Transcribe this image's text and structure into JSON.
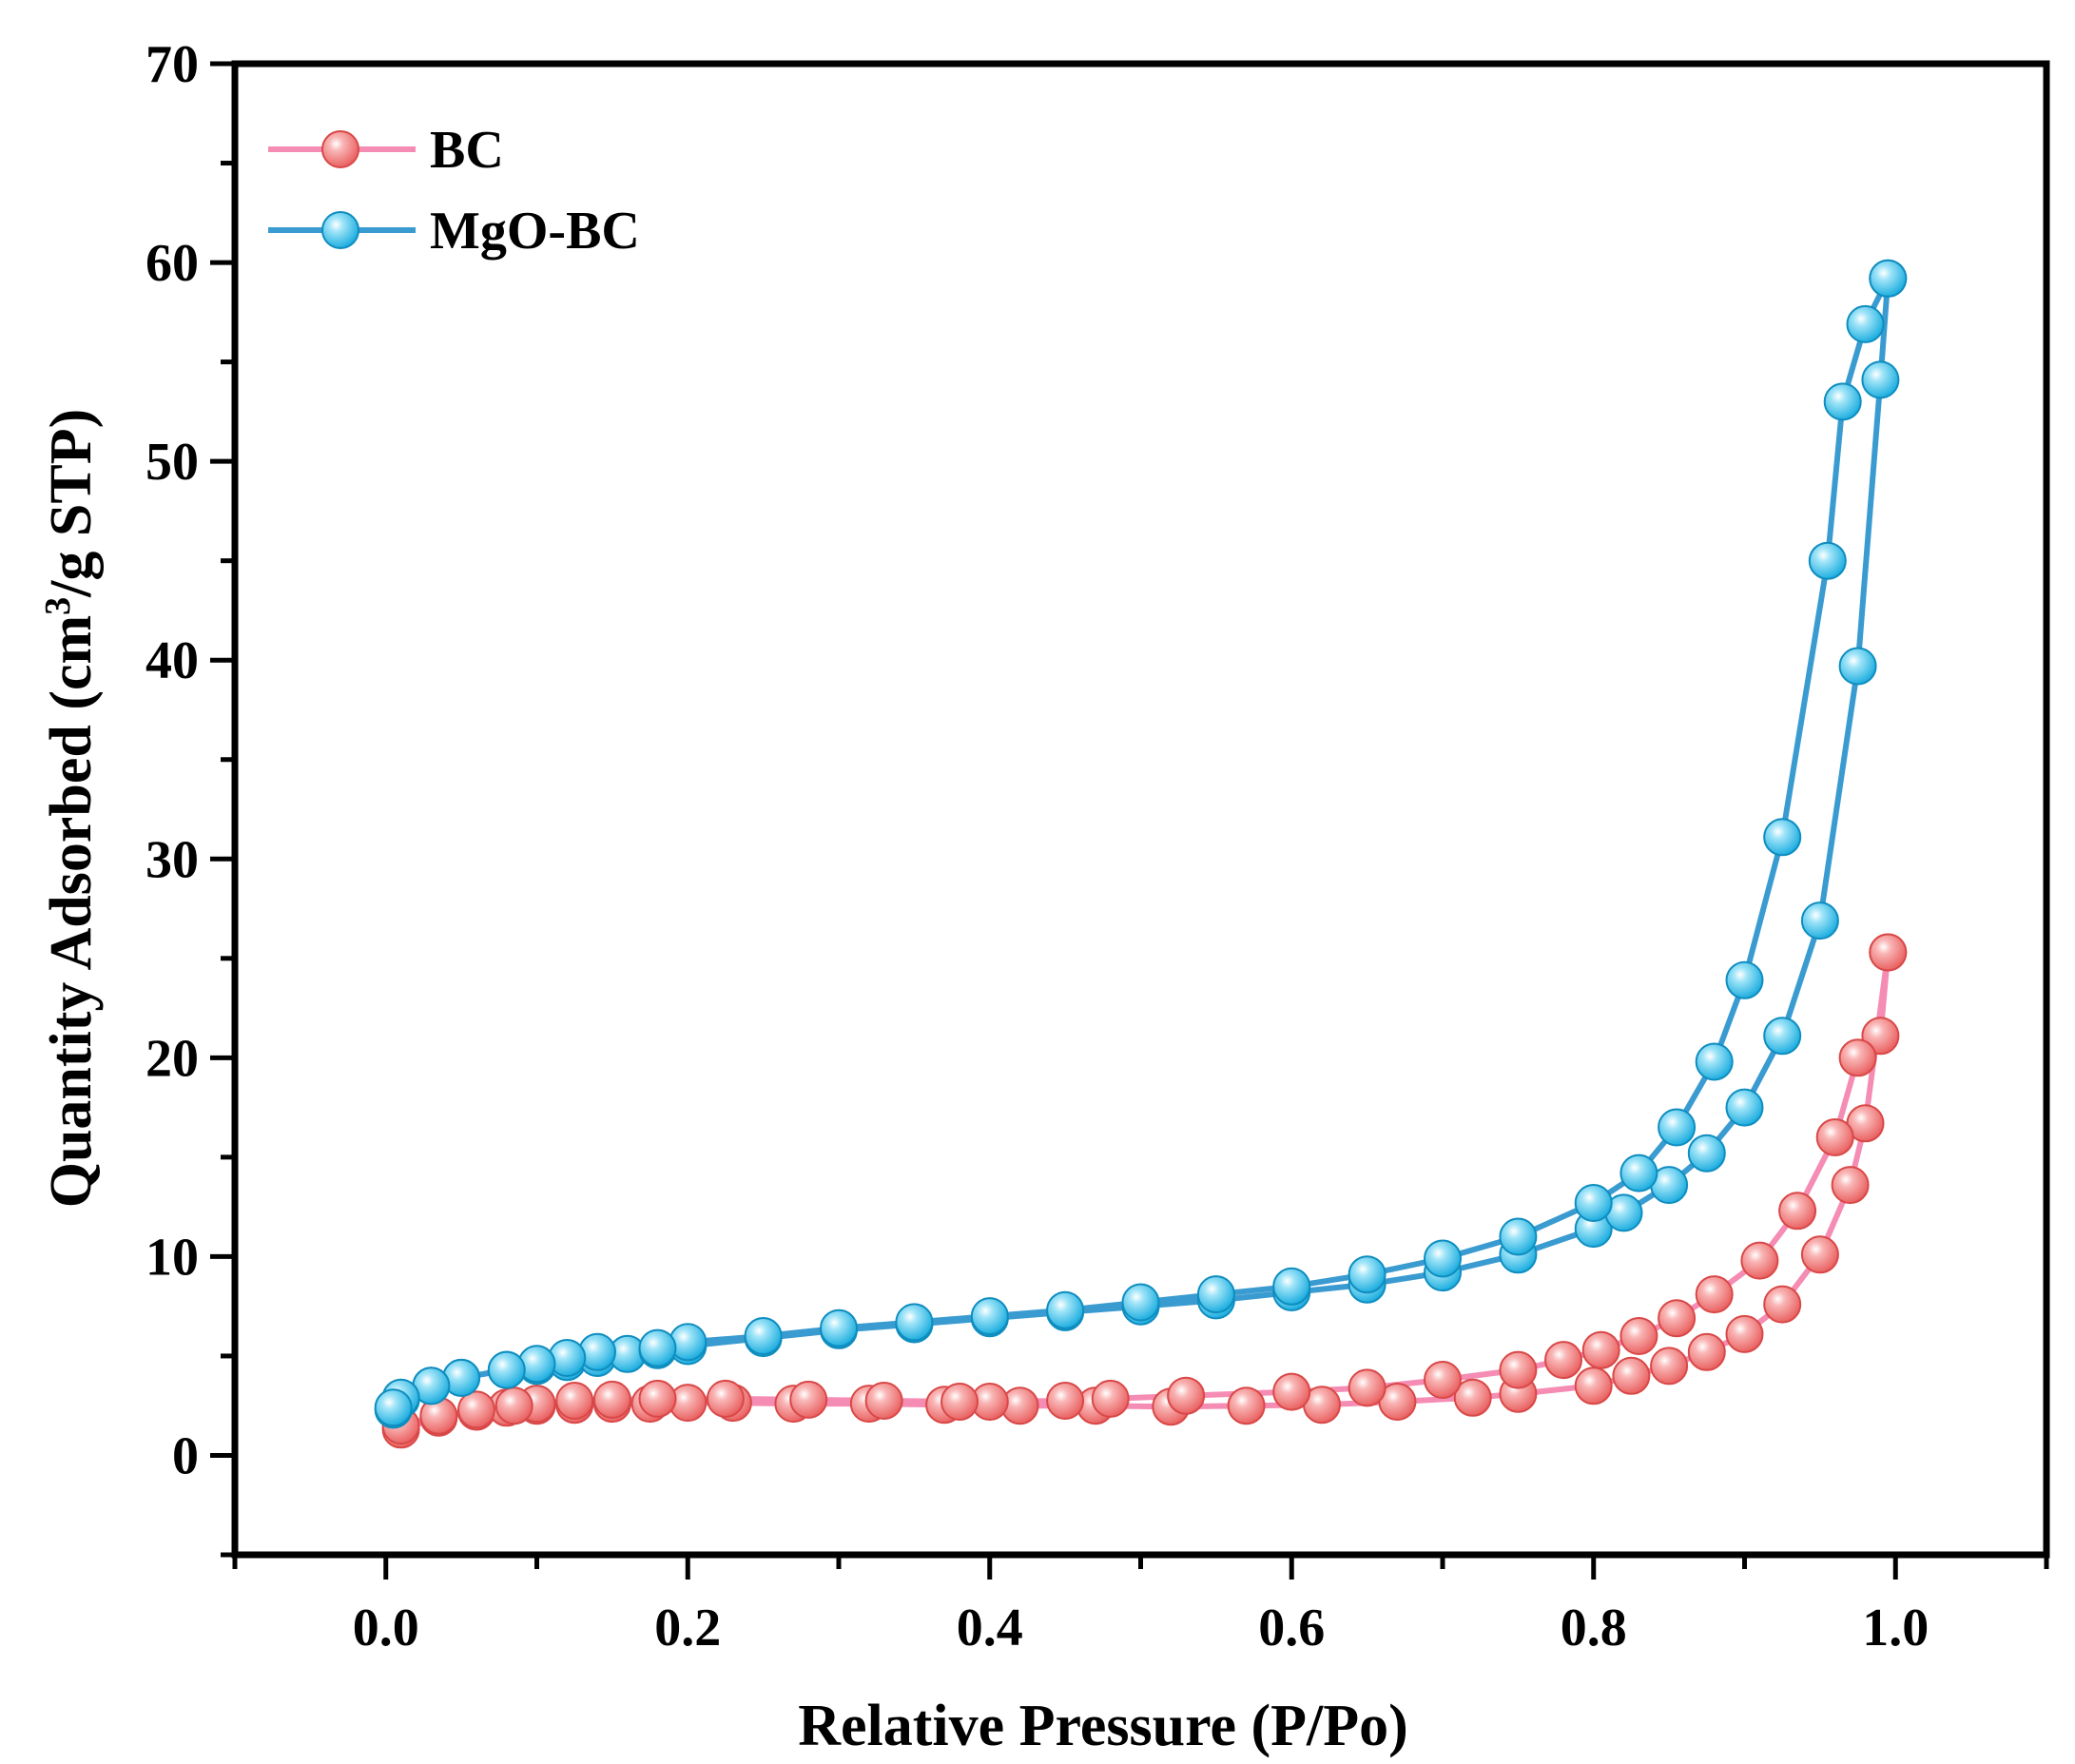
{
  "chart_data": {
    "type": "line",
    "title": "",
    "xlabel": "Relative Pressure (P/Po)",
    "ylabel_main": "Quantity Adsorbed (cm",
    "ylabel_sup": "3",
    "ylabel_tail": "/g STP)",
    "xlim": [
      -0.1,
      1.1
    ],
    "ylim": [
      -5,
      70
    ],
    "xticks": [
      0.0,
      0.2,
      0.4,
      0.6,
      0.8,
      1.0
    ],
    "xtick_labels": [
      "0.0",
      "0.2",
      "0.4",
      "0.6",
      "0.8",
      "1.0"
    ],
    "yticks": [
      0,
      10,
      20,
      30,
      40,
      50,
      60,
      70
    ],
    "ytick_labels": [
      "0",
      "10",
      "20",
      "30",
      "40",
      "50",
      "60",
      "70"
    ],
    "legend_position": "top-left",
    "series": [
      {
        "name": "BC",
        "line_color": "#f58cb3",
        "marker_color": "#f26b6b",
        "adsorption": {
          "x": [
            0.01,
            0.035,
            0.06,
            0.08,
            0.1,
            0.125,
            0.15,
            0.175,
            0.2,
            0.23,
            0.27,
            0.32,
            0.37,
            0.42,
            0.47,
            0.52,
            0.57,
            0.62,
            0.67,
            0.72,
            0.75,
            0.8,
            0.825,
            0.85,
            0.875,
            0.9,
            0.925,
            0.95,
            0.97,
            0.98,
            0.995
          ],
          "y": [
            1.3,
            1.9,
            2.2,
            2.4,
            2.5,
            2.55,
            2.6,
            2.6,
            2.65,
            2.65,
            2.6,
            2.6,
            2.55,
            2.5,
            2.5,
            2.45,
            2.5,
            2.55,
            2.7,
            2.9,
            3.1,
            3.5,
            4.0,
            4.5,
            5.2,
            6.1,
            7.6,
            10.1,
            13.6,
            16.7,
            25.3
          ]
        },
        "desorption": {
          "x": [
            0.995,
            0.99,
            0.975,
            0.96,
            0.935,
            0.91,
            0.88,
            0.855,
            0.83,
            0.805,
            0.78,
            0.75,
            0.7,
            0.65,
            0.6,
            0.53,
            0.48,
            0.45,
            0.4,
            0.38,
            0.33,
            0.28,
            0.225,
            0.18,
            0.15,
            0.125,
            0.1,
            0.085,
            0.06,
            0.035,
            0.01
          ],
          "y": [
            25.3,
            21.1,
            20.0,
            16.0,
            12.3,
            9.8,
            8.1,
            6.9,
            6.0,
            5.3,
            4.8,
            4.3,
            3.8,
            3.4,
            3.2,
            3.0,
            2.85,
            2.75,
            2.7,
            2.7,
            2.75,
            2.8,
            2.85,
            2.85,
            2.8,
            2.75,
            2.6,
            2.5,
            2.3,
            2.0,
            1.5
          ]
        }
      },
      {
        "name": "MgO-BC",
        "line_color": "#3a9bd1",
        "marker_color": "#20b8e8",
        "adsorption": {
          "x": [
            0.005,
            0.01,
            0.03,
            0.05,
            0.08,
            0.1,
            0.12,
            0.14,
            0.16,
            0.18,
            0.2,
            0.25,
            0.3,
            0.35,
            0.4,
            0.45,
            0.5,
            0.55,
            0.6,
            0.65,
            0.7,
            0.75,
            0.8,
            0.82,
            0.85,
            0.875,
            0.9,
            0.925,
            0.95,
            0.975,
            0.99,
            0.995
          ],
          "y": [
            2.3,
            2.8,
            3.5,
            3.9,
            4.3,
            4.5,
            4.7,
            4.9,
            5.1,
            5.3,
            5.5,
            5.9,
            6.3,
            6.6,
            6.9,
            7.2,
            7.5,
            7.8,
            8.2,
            8.6,
            9.2,
            10.1,
            11.4,
            12.2,
            13.6,
            15.2,
            17.5,
            21.1,
            26.9,
            39.7,
            54.1,
            59.2
          ]
        },
        "desorption": {
          "x": [
            0.995,
            0.98,
            0.965,
            0.955,
            0.925,
            0.9,
            0.88,
            0.855,
            0.83,
            0.8,
            0.75,
            0.7,
            0.65,
            0.6,
            0.55,
            0.5,
            0.45,
            0.4,
            0.35,
            0.3,
            0.25,
            0.2,
            0.18,
            0.14,
            0.12,
            0.1,
            0.08,
            0.05,
            0.03,
            0.01,
            0.005
          ],
          "y": [
            59.2,
            56.9,
            53.0,
            45.0,
            31.1,
            23.9,
            19.8,
            16.5,
            14.2,
            12.7,
            11.0,
            9.9,
            9.1,
            8.5,
            8.1,
            7.7,
            7.3,
            7.0,
            6.7,
            6.4,
            6.0,
            5.7,
            5.4,
            5.2,
            4.9,
            4.6,
            4.3,
            3.9,
            3.5,
            2.9,
            2.4
          ]
        }
      }
    ]
  }
}
